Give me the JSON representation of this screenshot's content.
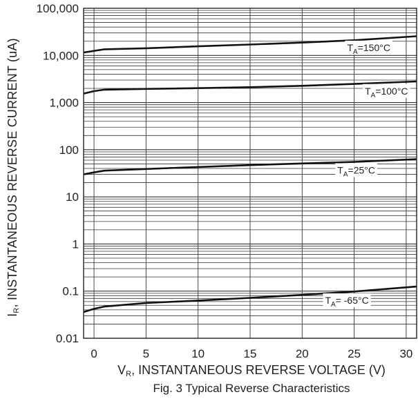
{
  "chart_data": {
    "type": "line",
    "title": "Fig. 3 Typical Reverse Characteristics",
    "xlabel": {
      "main": "V",
      "sub": "R",
      "rest": ", INSTANTANEOUS REVERSE VOLTAGE (V)"
    },
    "ylabel": {
      "main": "I",
      "sub": "R",
      "rest": ", INSTANTANEOUS REVERSE CURRENT (uA)"
    },
    "x_scale": "linear",
    "y_scale": "log",
    "xlim": [
      -1,
      31
    ],
    "ylim": [
      0.01,
      100000
    ],
    "x_ticks": [
      0,
      5,
      10,
      15,
      20,
      25,
      30
    ],
    "x_tick_labels": [
      "0",
      "5",
      "10",
      "15",
      "20",
      "25",
      "30"
    ],
    "y_ticks": [
      0.01,
      0.1,
      1,
      10,
      100,
      1000,
      10000,
      100000
    ],
    "y_tick_labels": [
      "0.01",
      "0.1",
      "1",
      "10",
      "100",
      "1,000",
      "10,000",
      "100,000"
    ],
    "grid": true,
    "series": [
      {
        "name": "T_A=150°C",
        "label": {
          "main": "T",
          "sub": "A",
          "rest": "=150°C"
        },
        "x": [
          -1,
          0,
          1,
          5,
          10,
          15,
          20,
          25,
          31
        ],
        "y": [
          11500,
          12500,
          13500,
          14200,
          15600,
          17000,
          18700,
          21000,
          25500
        ]
      },
      {
        "name": "T_A=100°C",
        "label": {
          "main": "T",
          "sub": "A",
          "rest": "=100°C"
        },
        "x": [
          -1,
          0,
          1,
          5,
          10,
          15,
          20,
          25,
          31
        ],
        "y": [
          1550,
          1750,
          1880,
          1950,
          2020,
          2120,
          2270,
          2480,
          2800
        ]
      },
      {
        "name": "T_A=25°C",
        "label": {
          "main": "T",
          "sub": "A",
          "rest": "=25°C"
        },
        "x": [
          -1,
          0,
          1,
          5,
          10,
          15,
          20,
          25,
          31
        ],
        "y": [
          30,
          33,
          36,
          39,
          43,
          47,
          51,
          55,
          63
        ]
      },
      {
        "name": "T_A= -65°C",
        "label": {
          "main": "T",
          "sub": "A",
          "rest": "= -65°C"
        },
        "x": [
          -1,
          0,
          1,
          5,
          10,
          15,
          20,
          25,
          31
        ],
        "y": [
          0.036,
          0.042,
          0.047,
          0.056,
          0.063,
          0.072,
          0.083,
          0.098,
          0.125
        ]
      }
    ],
    "label_anchor_x": [
      26.4,
      28.1,
      25.2,
      24.3
    ],
    "colors": {
      "line": "#111111",
      "grid": "#333333",
      "background": "#ffffff"
    }
  }
}
